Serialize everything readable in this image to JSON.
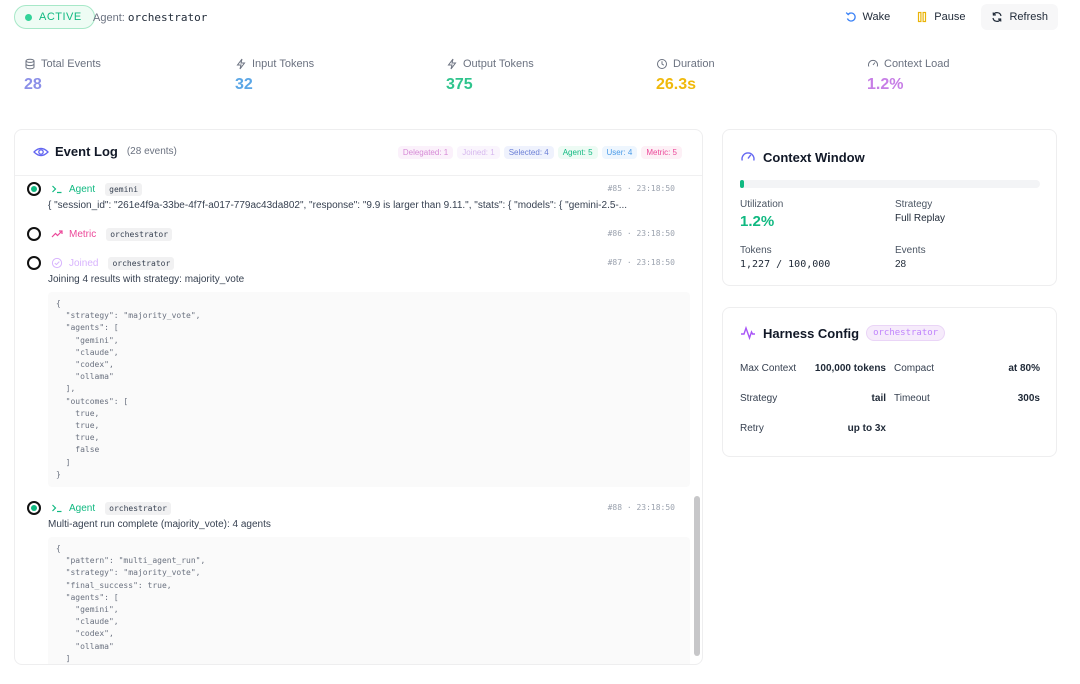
{
  "header": {
    "status": "ACTIVE",
    "agent_prefix": "Agent:",
    "agent_name": "orchestrator",
    "actions": {
      "wake": "Wake",
      "pause": "Pause",
      "refresh": "Refresh"
    }
  },
  "stats": [
    {
      "label": "Total Events",
      "value": "28",
      "icon": "database-icon",
      "color": "#8b8fe8"
    },
    {
      "label": "Input Tokens",
      "value": "32",
      "icon": "bolt-icon",
      "color": "#5aa6e6"
    },
    {
      "label": "Output Tokens",
      "value": "375",
      "icon": "bolt-icon",
      "color": "#2fc48d"
    },
    {
      "label": "Duration",
      "value": "26.3s",
      "icon": "clock-icon",
      "color": "#f0b90b"
    },
    {
      "label": "Context Load",
      "value": "1.2%",
      "icon": "gauge-icon",
      "color": "#c77ee6"
    }
  ],
  "event_log": {
    "title": "Event Log",
    "count": "(28 events)",
    "badges": [
      {
        "label": "Delegated: 1",
        "color": "#d68ad6",
        "bg": "#fbf1fb"
      },
      {
        "label": "Joined: 1",
        "color": "#d6b8ee",
        "bg": "#faf5fd"
      },
      {
        "label": "Selected: 4",
        "color": "#6b7fd6",
        "bg": "#eff2fd"
      },
      {
        "label": "Agent: 5",
        "color": "#10b981",
        "bg": "#edfbf4"
      },
      {
        "label": "User: 4",
        "color": "#4a9be8",
        "bg": "#eef6fe"
      },
      {
        "label": "Metric: 5",
        "color": "#ec4899",
        "bg": "#fdf0f6"
      }
    ],
    "events": [
      {
        "type": "Agent",
        "source": "gemini",
        "meta": "#85 · 23:18:50",
        "text": "{ \"session_id\": \"261e4f9a-33be-4f7f-a017-779ac43da802\", \"response\": \"9.9 is larger than 9.11.\", \"stats\": { \"models\": { \"gemini-2.5-...",
        "color": "#10b981",
        "icon": "terminal-icon"
      },
      {
        "type": "Metric",
        "source": "orchestrator",
        "meta": "#86 · 23:18:50",
        "text": "",
        "color": "#ec4899",
        "icon": "trend-icon"
      },
      {
        "type": "Joined",
        "source": "orchestrator",
        "meta": "#87 · 23:18:50",
        "text": "Joining 4 results with strategy: majority_vote",
        "color": "#d8b4fe",
        "icon": "check-circle-icon",
        "code": "{\n  \"strategy\": \"majority_vote\",\n  \"agents\": [\n    \"gemini\",\n    \"claude\",\n    \"codex\",\n    \"ollama\"\n  ],\n  \"outcomes\": [\n    true,\n    true,\n    true,\n    false\n  ]\n}"
      },
      {
        "type": "Agent",
        "source": "orchestrator",
        "meta": "#88 · 23:18:50",
        "text": "Multi-agent run complete (majority_vote): 4 agents",
        "color": "#10b981",
        "icon": "terminal-icon",
        "code": "{\n  \"pattern\": \"multi_agent_run\",\n  \"strategy\": \"majority_vote\",\n  \"final_success\": true,\n  \"agents\": [\n    \"gemini\",\n    \"claude\",\n    \"codex\",\n    \"ollama\"\n  ]"
      }
    ]
  },
  "context_window": {
    "title": "Context Window",
    "utilization_fraction": 0.012,
    "utilization_label": "Utilization",
    "utilization_value": "1.2%",
    "strategy_label": "Strategy",
    "strategy_value": "Full Replay",
    "tokens_label": "Tokens",
    "tokens_value": "1,227 / 100,000",
    "events_label": "Events",
    "events_value": "28"
  },
  "harness": {
    "title": "Harness Config",
    "source": "orchestrator",
    "max_context_label": "Max Context",
    "max_context_value": "100,000 tokens",
    "compact_label": "Compact",
    "compact_value": "at 80%",
    "strategy_label": "Strategy",
    "strategy_value": "tail",
    "timeout_label": "Timeout",
    "timeout_value": "300s",
    "retry_label": "Retry",
    "retry_value": "up to 3x"
  }
}
